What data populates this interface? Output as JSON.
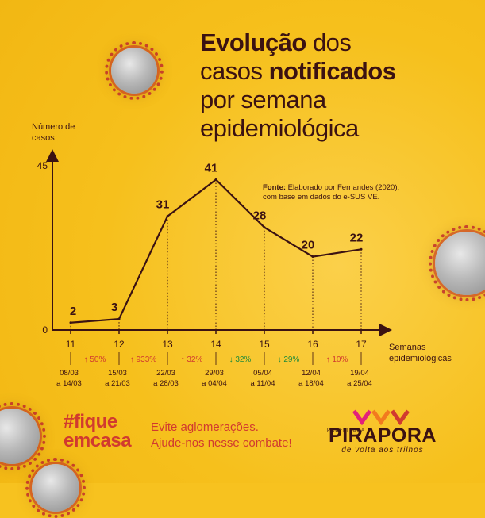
{
  "title": {
    "part1": "Evolução",
    "part2": " dos",
    "part3": "casos ",
    "part4": "notificados",
    "part5": "por semana",
    "part6": "epidemiológica"
  },
  "source": {
    "label": "Fonte:",
    "text": " Elaborado por Fernandes (2020), com base em dados do e-SUS VE."
  },
  "chart_data": {
    "type": "line",
    "ylabel": "Número de casos",
    "xlabel": "Semanas epidemiológicas",
    "ylim": [
      0,
      45
    ],
    "yticks": [
      "0",
      "45"
    ],
    "x": [
      "11",
      "12",
      "13",
      "14",
      "15",
      "16",
      "17"
    ],
    "values": [
      2,
      3,
      31,
      41,
      28,
      20,
      22
    ],
    "value_labels": [
      "2",
      "3",
      "31",
      "41",
      "28",
      "20",
      "22"
    ],
    "dates": [
      [
        "08/03",
        "a 14/03"
      ],
      [
        "15/03",
        "a 21/03"
      ],
      [
        "22/03",
        "a 28/03"
      ],
      [
        "29/03",
        "a 04/04"
      ],
      [
        "05/04",
        "a 11/04"
      ],
      [
        "12/04",
        "a 18/04"
      ],
      [
        "19/04",
        "a 25/04"
      ]
    ],
    "changes": [
      {
        "dir": "up",
        "text": "50%"
      },
      {
        "dir": "up",
        "text": "933%"
      },
      {
        "dir": "up",
        "text": "32%"
      },
      {
        "dir": "down",
        "text": "32%"
      },
      {
        "dir": "down",
        "text": "29%"
      },
      {
        "dir": "up",
        "text": "10%"
      }
    ],
    "colors": {
      "line": "#3b1212",
      "up": "#d13a2f",
      "down": "#1e8a3a"
    }
  },
  "footer": {
    "hashtag_line1": "#fique",
    "hashtag_line2": "emcasa",
    "message_line1": "Evite aglomerações.",
    "message_line2": "Ajude-nos nesse combate!"
  },
  "logo": {
    "small": "PREFEITURA",
    "name": "PIRAPORA",
    "slogan": "de volta aos trilhos"
  }
}
